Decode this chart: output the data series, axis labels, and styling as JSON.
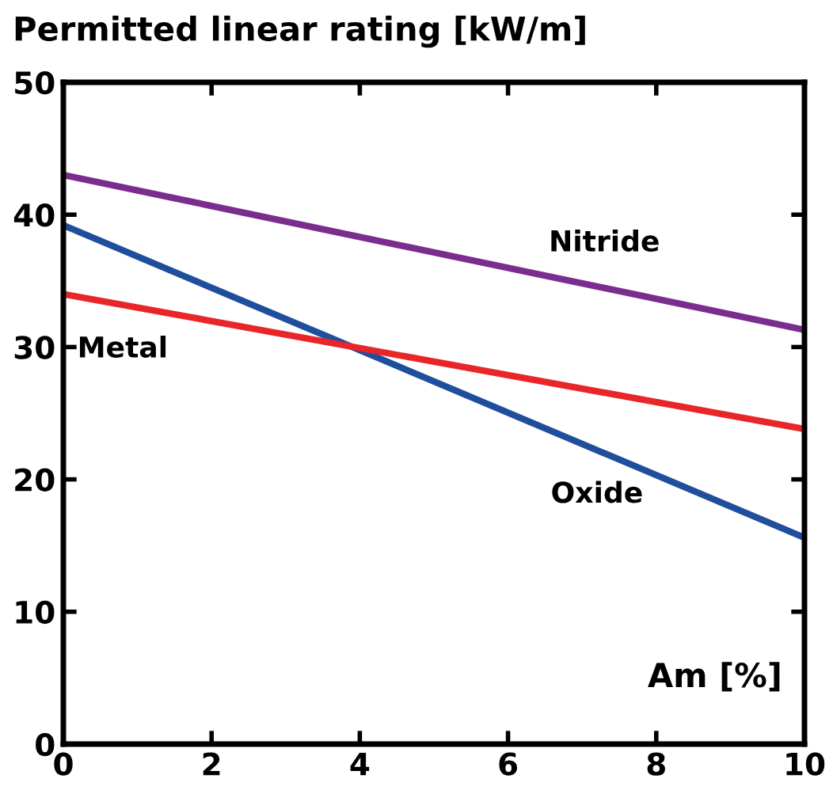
{
  "chart_data": {
    "type": "line",
    "title": "Permitted linear rating [kW/m]",
    "xlabel": "Am [%]",
    "x": [
      0,
      10
    ],
    "series": [
      {
        "name": "Nitride",
        "color": "#7b2d8e",
        "values": [
          43.0,
          31.3
        ]
      },
      {
        "name": "Oxide",
        "color": "#1f4e9c",
        "values": [
          39.2,
          15.6
        ]
      },
      {
        "name": "Metal",
        "color": "#e8262a",
        "values": [
          34.0,
          23.8
        ]
      }
    ],
    "xlim": [
      0,
      10
    ],
    "ylim": [
      0,
      50
    ],
    "xticks": [
      0,
      2,
      4,
      6,
      8,
      10
    ],
    "yticks": [
      0,
      10,
      20,
      30,
      40,
      50
    ],
    "grid": false,
    "legend": false,
    "marker": "none",
    "line_style": "solid"
  }
}
